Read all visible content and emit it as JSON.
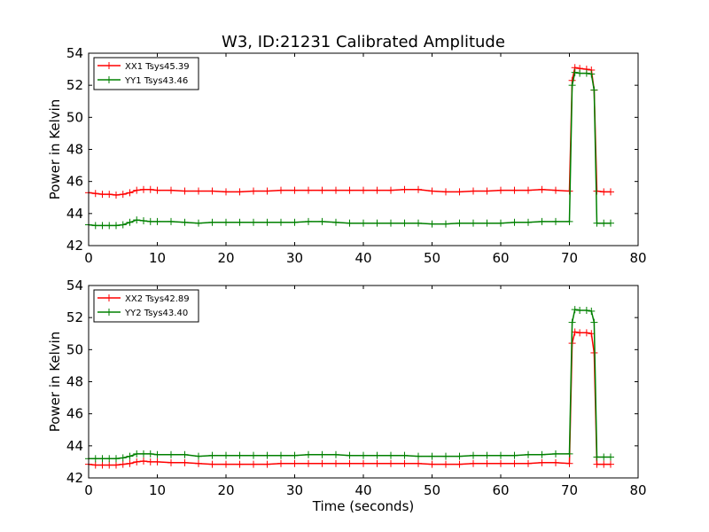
{
  "figure": {
    "title": "W3, ID:21231 Calibrated Amplitude",
    "xlabel": "Time (seconds)"
  },
  "chart_data": [
    {
      "type": "line",
      "ylabel": "Power in Kelvin",
      "xlim": [
        0,
        80
      ],
      "ylim": [
        42,
        54
      ],
      "xticks": [
        0,
        10,
        20,
        30,
        40,
        50,
        60,
        70,
        80
      ],
      "yticks": [
        42,
        44,
        46,
        48,
        50,
        52,
        54
      ],
      "grid": false,
      "legend_position": "top-left",
      "series": [
        {
          "name": "XX1 Tsys45.39",
          "color": "#ff0000",
          "marker": "plus",
          "x": [
            0,
            1,
            2,
            3,
            4,
            5,
            6,
            7,
            8,
            9,
            10,
            12,
            14,
            16,
            18,
            20,
            22,
            24,
            26,
            28,
            30,
            32,
            34,
            36,
            38,
            40,
            42,
            44,
            46,
            48,
            50,
            52,
            54,
            56,
            58,
            60,
            62,
            64,
            66,
            68,
            70,
            70.4,
            70.8,
            71.5,
            72.5,
            73.2,
            73.6,
            74,
            75,
            76
          ],
          "y": [
            45.3,
            45.25,
            45.2,
            45.2,
            45.15,
            45.2,
            45.3,
            45.45,
            45.5,
            45.5,
            45.45,
            45.45,
            45.4,
            45.4,
            45.4,
            45.35,
            45.35,
            45.4,
            45.4,
            45.45,
            45.45,
            45.45,
            45.45,
            45.45,
            45.45,
            45.45,
            45.45,
            45.45,
            45.5,
            45.5,
            45.4,
            45.35,
            45.35,
            45.4,
            45.4,
            45.45,
            45.45,
            45.45,
            45.5,
            45.45,
            45.4,
            52.3,
            53.1,
            53.05,
            53.0,
            52.95,
            51.7,
            45.4,
            45.35,
            45.35
          ]
        },
        {
          "name": "YY1 Tsys43.46",
          "color": "#008000",
          "marker": "plus",
          "x": [
            0,
            1,
            2,
            3,
            4,
            5,
            6,
            7,
            8,
            9,
            10,
            12,
            14,
            16,
            18,
            20,
            22,
            24,
            26,
            28,
            30,
            32,
            34,
            36,
            38,
            40,
            42,
            44,
            46,
            48,
            50,
            52,
            54,
            56,
            58,
            60,
            62,
            64,
            66,
            68,
            70,
            70.4,
            70.8,
            71.5,
            72.5,
            73.2,
            73.6,
            74,
            75,
            76
          ],
          "y": [
            43.3,
            43.25,
            43.25,
            43.25,
            43.25,
            43.3,
            43.45,
            43.6,
            43.55,
            43.5,
            43.5,
            43.5,
            43.45,
            43.4,
            43.45,
            43.45,
            43.45,
            43.45,
            43.45,
            43.45,
            43.45,
            43.5,
            43.5,
            43.45,
            43.4,
            43.4,
            43.4,
            43.4,
            43.4,
            43.4,
            43.35,
            43.35,
            43.4,
            43.4,
            43.4,
            43.4,
            43.45,
            43.45,
            43.5,
            43.5,
            43.5,
            52.0,
            52.8,
            52.75,
            52.75,
            52.7,
            51.7,
            43.4,
            43.4,
            43.4
          ]
        }
      ]
    },
    {
      "type": "line",
      "ylabel": "Power in Kelvin",
      "xlabel": "Time (seconds)",
      "xlim": [
        0,
        80
      ],
      "ylim": [
        42,
        54
      ],
      "xticks": [
        0,
        10,
        20,
        30,
        40,
        50,
        60,
        70,
        80
      ],
      "yticks": [
        42,
        44,
        46,
        48,
        50,
        52,
        54
      ],
      "grid": false,
      "legend_position": "top-left",
      "series": [
        {
          "name": "XX2 Tsys42.89",
          "color": "#ff0000",
          "marker": "plus",
          "x": [
            0,
            1,
            2,
            3,
            4,
            5,
            6,
            7,
            8,
            9,
            10,
            12,
            14,
            16,
            18,
            20,
            22,
            24,
            26,
            28,
            30,
            32,
            34,
            36,
            38,
            40,
            42,
            44,
            46,
            48,
            50,
            52,
            54,
            56,
            58,
            60,
            62,
            64,
            66,
            68,
            70,
            70.4,
            70.8,
            71.5,
            72.5,
            73.2,
            73.6,
            74,
            75,
            76
          ],
          "y": [
            42.85,
            42.8,
            42.8,
            42.8,
            42.8,
            42.85,
            42.9,
            43.0,
            43.05,
            43.0,
            43.0,
            42.95,
            42.95,
            42.9,
            42.85,
            42.85,
            42.85,
            42.85,
            42.85,
            42.9,
            42.9,
            42.9,
            42.9,
            42.9,
            42.9,
            42.9,
            42.9,
            42.9,
            42.9,
            42.9,
            42.85,
            42.85,
            42.85,
            42.9,
            42.9,
            42.9,
            42.9,
            42.9,
            42.95,
            42.95,
            42.9,
            50.4,
            51.1,
            51.05,
            51.05,
            51.0,
            49.8,
            42.85,
            42.85,
            42.85
          ]
        },
        {
          "name": "YY2 Tsys43.40",
          "color": "#008000",
          "marker": "plus",
          "x": [
            0,
            1,
            2,
            3,
            4,
            5,
            6,
            7,
            8,
            9,
            10,
            12,
            14,
            16,
            18,
            20,
            22,
            24,
            26,
            28,
            30,
            32,
            34,
            36,
            38,
            40,
            42,
            44,
            46,
            48,
            50,
            52,
            54,
            56,
            58,
            60,
            62,
            64,
            66,
            68,
            70,
            70.4,
            70.8,
            71.5,
            72.5,
            73.2,
            73.6,
            74,
            75,
            76
          ],
          "y": [
            43.2,
            43.2,
            43.2,
            43.2,
            43.2,
            43.25,
            43.35,
            43.5,
            43.5,
            43.5,
            43.45,
            43.45,
            43.45,
            43.35,
            43.4,
            43.4,
            43.4,
            43.4,
            43.4,
            43.4,
            43.4,
            43.45,
            43.45,
            43.45,
            43.4,
            43.4,
            43.4,
            43.4,
            43.4,
            43.35,
            43.35,
            43.35,
            43.35,
            43.4,
            43.4,
            43.4,
            43.4,
            43.45,
            43.45,
            43.5,
            43.5,
            51.7,
            52.5,
            52.45,
            52.45,
            52.4,
            51.7,
            43.3,
            43.3,
            43.3
          ]
        }
      ]
    }
  ]
}
